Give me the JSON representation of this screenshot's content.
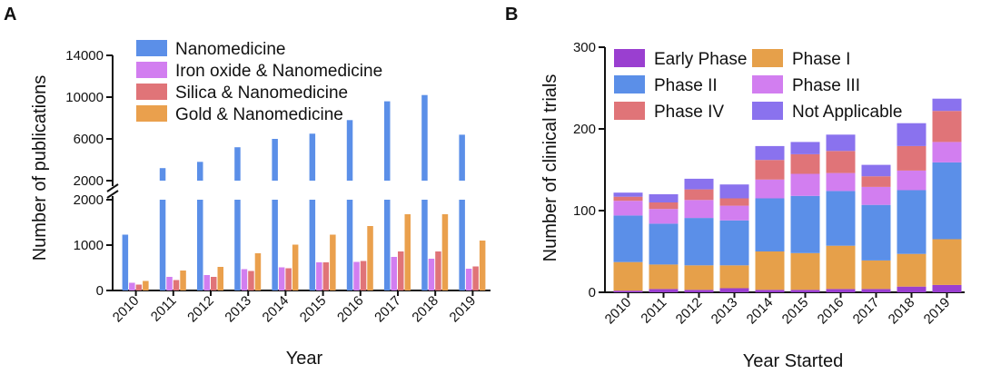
{
  "chart_data": [
    {
      "panel": "A",
      "type": "bar",
      "subtype": "grouped",
      "xlabel": "Year",
      "ylabel": "Number of publications",
      "categories": [
        "2010",
        "2011",
        "2012",
        "2013",
        "2014",
        "2015",
        "2016",
        "2017",
        "2018",
        "2019"
      ],
      "y_axis_break": {
        "lower_range": [
          0,
          2000
        ],
        "upper_range": [
          2000,
          14000
        ]
      },
      "yticks_lower": [
        0,
        1000,
        2000
      ],
      "yticks_upper": [
        2000,
        6000,
        10000,
        14000
      ],
      "series": [
        {
          "name": "Nanomedicine",
          "color": "#5b8fe8",
          "values": [
            1230,
            3200,
            3800,
            5200,
            6000,
            6500,
            7800,
            9600,
            10200,
            6400
          ]
        },
        {
          "name": "Iron oxide & Nanomedicine",
          "color": "#d27ef0",
          "values": [
            170,
            300,
            340,
            470,
            510,
            620,
            630,
            740,
            700,
            480
          ]
        },
        {
          "name": "Silica & Nanomedicine",
          "color": "#e07478",
          "values": [
            130,
            230,
            300,
            430,
            490,
            620,
            650,
            860,
            860,
            530
          ]
        },
        {
          "name": "Gold & Nanomedicine",
          "color": "#eaa04d",
          "values": [
            210,
            440,
            520,
            820,
            1010,
            1230,
            1420,
            1680,
            1680,
            1100
          ]
        }
      ]
    },
    {
      "panel": "B",
      "type": "bar",
      "subtype": "stacked",
      "xlabel": "Year Started",
      "ylabel": "Number of clinical trials",
      "categories": [
        "2010",
        "2011",
        "2012",
        "2013",
        "2014",
        "2015",
        "2016",
        "2017",
        "2018",
        "2019"
      ],
      "ylim": [
        0,
        300
      ],
      "yticks": [
        0,
        100,
        200,
        300
      ],
      "series": [
        {
          "name": "Early Phase I",
          "color": "#9a3fd0",
          "values": [
            2,
            4,
            3,
            5,
            3,
            3,
            4,
            4,
            7,
            9
          ]
        },
        {
          "name": "Phase I",
          "color": "#e6a04a",
          "values": [
            35,
            30,
            30,
            28,
            47,
            45,
            53,
            35,
            40,
            56
          ]
        },
        {
          "name": "Phase II",
          "color": "#5b8fe8",
          "values": [
            57,
            50,
            58,
            55,
            65,
            70,
            67,
            68,
            78,
            94
          ]
        },
        {
          "name": "Phase III",
          "color": "#d27ef0",
          "values": [
            18,
            18,
            22,
            18,
            23,
            27,
            22,
            22,
            24,
            25
          ]
        },
        {
          "name": "Phase IV",
          "color": "#e07478",
          "values": [
            5,
            8,
            13,
            9,
            24,
            24,
            27,
            13,
            30,
            38
          ]
        },
        {
          "name": "Not Applicable",
          "color": "#8a72ee",
          "values": [
            5,
            10,
            13,
            17,
            17,
            15,
            20,
            14,
            28,
            15
          ]
        }
      ]
    }
  ]
}
